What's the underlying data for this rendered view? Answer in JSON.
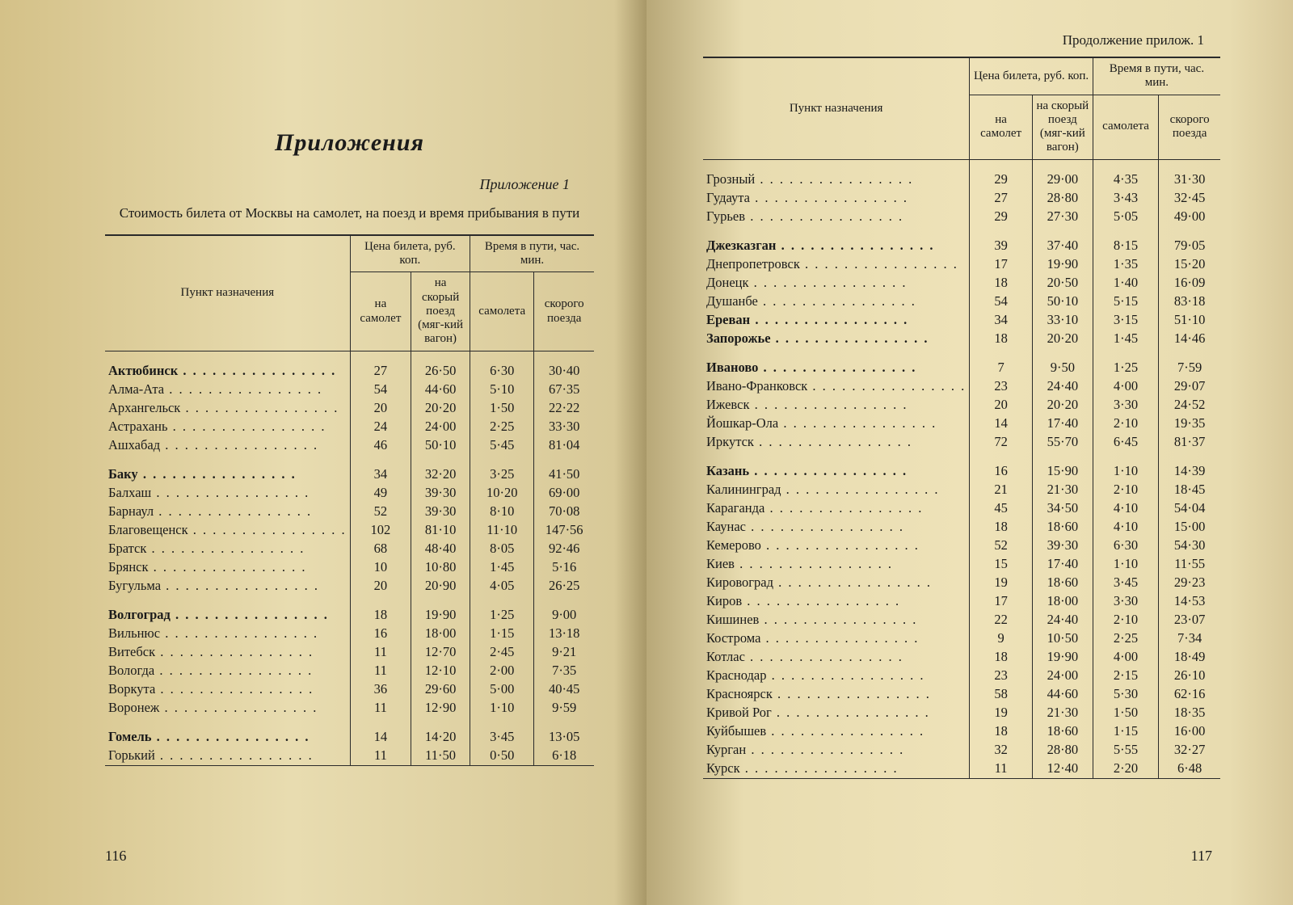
{
  "leftPage": {
    "mainTitle": "Приложения",
    "subTitle": "Приложение 1",
    "caption": "Стоимость билета от Москвы на самолет, на поезд и время прибывания в пути",
    "pageNumber": "116"
  },
  "rightPage": {
    "contTitle": "Продолжение прилож. 1",
    "pageNumber": "117"
  },
  "tableHeader": {
    "destination": "Пункт назначения",
    "priceGroup": "Цена билета,\nруб. коп.",
    "timeGroup": "Время в пути,\nчас. мин.",
    "pricePlane": "на самолет",
    "priceTrain": "на скорый поезд (мяг-кий вагон)",
    "timePlane": "самолета",
    "timeTrain": "скорого поезда"
  },
  "style": {
    "text_color": "#1a1a1a",
    "border_color": "#2a2a2a",
    "paper_base": "#e8dcb0",
    "body_fontsize_pt": 12,
    "header_fontsize_pt": 11,
    "title_fontsize_pt": 22,
    "font_family": "serif",
    "num_separator": "·"
  },
  "leftGroups": [
    [
      {
        "d": "Актюбинск",
        "b": true,
        "v": [
          "27",
          "26·50",
          "6·30",
          "30·40"
        ]
      },
      {
        "d": "Алма-Ата",
        "v": [
          "54",
          "44·60",
          "5·10",
          "67·35"
        ]
      },
      {
        "d": "Архангельск",
        "v": [
          "20",
          "20·20",
          "1·50",
          "22·22"
        ]
      },
      {
        "d": "Астрахань",
        "v": [
          "24",
          "24·00",
          "2·25",
          "33·30"
        ]
      },
      {
        "d": "Ашхабад",
        "v": [
          "46",
          "50·10",
          "5·45",
          "81·04"
        ]
      }
    ],
    [
      {
        "d": "Баку",
        "b": true,
        "v": [
          "34",
          "32·20",
          "3·25",
          "41·50"
        ]
      },
      {
        "d": "Балхаш",
        "v": [
          "49",
          "39·30",
          "10·20",
          "69·00"
        ]
      },
      {
        "d": "Барнаул",
        "v": [
          "52",
          "39·30",
          "8·10",
          "70·08"
        ]
      },
      {
        "d": "Благовещенск",
        "v": [
          "102",
          "81·10",
          "11·10",
          "147·56"
        ]
      },
      {
        "d": "Братск",
        "v": [
          "68",
          "48·40",
          "8·05",
          "92·46"
        ]
      },
      {
        "d": "Брянск",
        "v": [
          "10",
          "10·80",
          "1·45",
          "5·16"
        ]
      },
      {
        "d": "Бугульма",
        "v": [
          "20",
          "20·90",
          "4·05",
          "26·25"
        ]
      }
    ],
    [
      {
        "d": "Волгоград",
        "b": true,
        "v": [
          "18",
          "19·90",
          "1·25",
          "9·00"
        ]
      },
      {
        "d": "Вильнюс",
        "v": [
          "16",
          "18·00",
          "1·15",
          "13·18"
        ]
      },
      {
        "d": "Витебск",
        "v": [
          "11",
          "12·70",
          "2·45",
          "9·21"
        ]
      },
      {
        "d": "Вологда",
        "v": [
          "11",
          "12·10",
          "2·00",
          "7·35"
        ]
      },
      {
        "d": "Воркута",
        "v": [
          "36",
          "29·60",
          "5·00",
          "40·45"
        ]
      },
      {
        "d": "Воронеж",
        "v": [
          "11",
          "12·90",
          "1·10",
          "9·59"
        ]
      }
    ],
    [
      {
        "d": "Гомель",
        "b": true,
        "v": [
          "14",
          "14·20",
          "3·45",
          "13·05"
        ]
      },
      {
        "d": "Горький",
        "v": [
          "11",
          "11·50",
          "0·50",
          "6·18"
        ]
      }
    ]
  ],
  "rightGroups": [
    [
      {
        "d": "Грозный",
        "v": [
          "29",
          "29·00",
          "4·35",
          "31·30"
        ]
      },
      {
        "d": "Гудаута",
        "v": [
          "27",
          "28·80",
          "3·43",
          "32·45"
        ]
      },
      {
        "d": "Гурьев",
        "v": [
          "29",
          "27·30",
          "5·05",
          "49·00"
        ]
      }
    ],
    [
      {
        "d": "Джезказган",
        "b": true,
        "v": [
          "39",
          "37·40",
          "8·15",
          "79·05"
        ]
      },
      {
        "d": "Днепропетровск",
        "v": [
          "17",
          "19·90",
          "1·35",
          "15·20"
        ]
      },
      {
        "d": "Донецк",
        "v": [
          "18",
          "20·50",
          "1·40",
          "16·09"
        ]
      },
      {
        "d": "Душанбе",
        "v": [
          "54",
          "50·10",
          "5·15",
          "83·18"
        ]
      },
      {
        "d": "Ереван",
        "b": true,
        "v": [
          "34",
          "33·10",
          "3·15",
          "51·10"
        ]
      },
      {
        "d": "Запорожье",
        "b": true,
        "v": [
          "18",
          "20·20",
          "1·45",
          "14·46"
        ]
      }
    ],
    [
      {
        "d": "Иваново",
        "b": true,
        "v": [
          "7",
          "9·50",
          "1·25",
          "7·59"
        ]
      },
      {
        "d": "Ивано-Франковск",
        "v": [
          "23",
          "24·40",
          "4·00",
          "29·07"
        ]
      },
      {
        "d": "Ижевск",
        "v": [
          "20",
          "20·20",
          "3·30",
          "24·52"
        ]
      },
      {
        "d": "Йошкар-Ола",
        "v": [
          "14",
          "17·40",
          "2·10",
          "19·35"
        ]
      },
      {
        "d": "Иркутск",
        "v": [
          "72",
          "55·70",
          "6·45",
          "81·37"
        ]
      }
    ],
    [
      {
        "d": "Казань",
        "b": true,
        "v": [
          "16",
          "15·90",
          "1·10",
          "14·39"
        ]
      },
      {
        "d": "Калининград",
        "v": [
          "21",
          "21·30",
          "2·10",
          "18·45"
        ]
      },
      {
        "d": "Караганда",
        "v": [
          "45",
          "34·50",
          "4·10",
          "54·04"
        ]
      },
      {
        "d": "Каунас",
        "v": [
          "18",
          "18·60",
          "4·10",
          "15·00"
        ]
      },
      {
        "d": "Кемерово",
        "v": [
          "52",
          "39·30",
          "6·30",
          "54·30"
        ]
      },
      {
        "d": "Киев",
        "v": [
          "15",
          "17·40",
          "1·10",
          "11·55"
        ]
      },
      {
        "d": "Кировоград",
        "v": [
          "19",
          "18·60",
          "3·45",
          "29·23"
        ]
      },
      {
        "d": "Киров",
        "v": [
          "17",
          "18·00",
          "3·30",
          "14·53"
        ]
      },
      {
        "d": "Кишинев",
        "v": [
          "22",
          "24·40",
          "2·10",
          "23·07"
        ]
      },
      {
        "d": "Кострома",
        "v": [
          "9",
          "10·50",
          "2·25",
          "7·34"
        ]
      },
      {
        "d": "Котлас",
        "v": [
          "18",
          "19·90",
          "4·00",
          "18·49"
        ]
      },
      {
        "d": "Краснодар",
        "v": [
          "23",
          "24·00",
          "2·15",
          "26·10"
        ]
      },
      {
        "d": "Красноярск",
        "v": [
          "58",
          "44·60",
          "5·30",
          "62·16"
        ]
      },
      {
        "d": "Кривой Рог",
        "v": [
          "19",
          "21·30",
          "1·50",
          "18·35"
        ]
      },
      {
        "d": "Куйбышев",
        "v": [
          "18",
          "18·60",
          "1·15",
          "16·00"
        ]
      },
      {
        "d": "Курган",
        "v": [
          "32",
          "28·80",
          "5·55",
          "32·27"
        ]
      },
      {
        "d": "Курск",
        "v": [
          "11",
          "12·40",
          "2·20",
          "6·48"
        ]
      }
    ]
  ]
}
